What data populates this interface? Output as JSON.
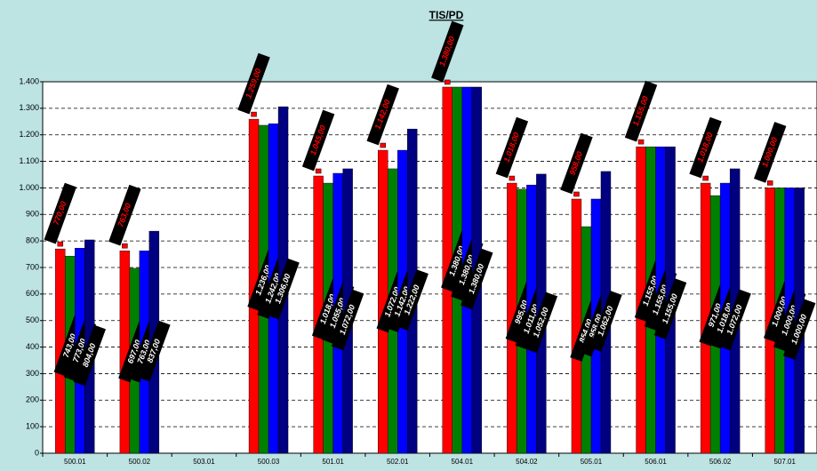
{
  "chart_data": {
    "type": "bar",
    "title": "TIS/PD",
    "categories": [
      "500.01",
      "500.02",
      "503.01",
      "500.03",
      "501.01",
      "502.01",
      "504.01",
      "504.02",
      "505.01",
      "506.01",
      "506.02",
      "507.01"
    ],
    "series": [
      {
        "color": "#ff0000",
        "values": [
          770,
          763,
          null,
          1259,
          1045,
          1142,
          1380,
          1018,
          958,
          1155,
          1018,
          1000
        ],
        "value_labels": [
          "770,00",
          "763,00",
          null,
          "1.259,00",
          "1.045,00",
          "1.142,00",
          "1.380,00",
          "1.018,00",
          "958,00",
          "1.155,00",
          "1.018,00",
          "1.000,00"
        ]
      },
      {
        "color": "#008000",
        "values": [
          743,
          697,
          null,
          1236,
          1018,
          1072,
          1380,
          995,
          854,
          1155,
          971,
          1000
        ],
        "value_labels": [
          "743,00",
          "697,00",
          null,
          "1.236,00",
          "1.018,00",
          "1.072,00",
          "1.380,00",
          "995,00",
          "854,00",
          "1.155,00",
          "971,00",
          "1.000,00"
        ]
      },
      {
        "color": "#0000ff",
        "values": [
          773,
          763,
          null,
          1242,
          1055,
          1142,
          1380,
          1011,
          958,
          1155,
          1018,
          1000
        ],
        "value_labels": [
          "773,00",
          "763,00",
          null,
          "1.242,00",
          "1.055,00",
          "1.142,00",
          "1.380,00",
          "1.011,00",
          "958,00",
          "1.155,00",
          "1.018,00",
          "1.000,00"
        ]
      },
      {
        "color": "#000080",
        "values": [
          804,
          837,
          null,
          1306,
          1072,
          1222,
          1380,
          1052,
          1062,
          1155,
          1072,
          1000
        ],
        "value_labels": [
          "804,00",
          "837,00",
          null,
          "1.306,00",
          "1.072,00",
          "1.222,00",
          "1.380,00",
          "1.052,00",
          "1.062,00",
          "1.155,00",
          "1.072,00",
          "1.000,00"
        ]
      }
    ],
    "ylim": [
      0,
      1400
    ],
    "yticks": [
      0,
      100,
      200,
      300,
      400,
      500,
      600,
      700,
      800,
      900,
      {
        "value": 1000,
        "label": "1.000"
      },
      {
        "value": 1100,
        "label": "1.100"
      },
      {
        "value": 1200,
        "label": "1.200"
      },
      {
        "value": 1300,
        "label": "1.300"
      },
      {
        "value": 1400,
        "label": "1.400"
      }
    ],
    "grid": true
  }
}
